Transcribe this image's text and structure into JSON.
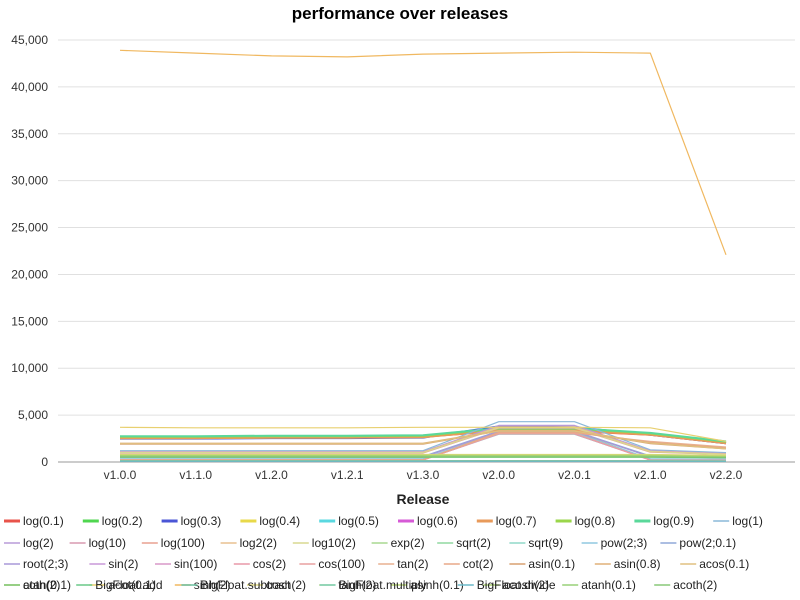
{
  "chart_data": {
    "type": "line",
    "title": "performance over releases",
    "xlabel": "Release",
    "ylabel": "",
    "categories": [
      "v1.0.0",
      "v1.1.0",
      "v1.2.0",
      "v1.2.1",
      "v1.3.0",
      "v2.0.0",
      "v2.0.1",
      "v2.1.0",
      "v2.2.0"
    ],
    "ylim": [
      0,
      45000
    ],
    "yticks": [
      0,
      5000,
      10000,
      15000,
      20000,
      25000,
      30000,
      35000,
      40000,
      45000
    ],
    "ytick_labels": [
      "0",
      "5,000",
      "10,000",
      "15,000",
      "20,000",
      "25,000",
      "30,000",
      "35,000",
      "40,000",
      "45,000"
    ],
    "grid": true,
    "legend_position": "bottom",
    "series": [
      {
        "name": "log(0.1)",
        "color": "#e8534a",
        "values": [
          2600,
          2600,
          2650,
          2650,
          2700,
          3300,
          3300,
          2900,
          2000
        ]
      },
      {
        "name": "log(0.2)",
        "color": "#4fd64f",
        "values": [
          2700,
          2700,
          2750,
          2750,
          2800,
          3600,
          3600,
          3000,
          2100
        ]
      },
      {
        "name": "log(0.3)",
        "color": "#4a55d6",
        "values": [
          2500,
          2500,
          2550,
          2550,
          2600,
          3800,
          3700,
          2900,
          2000
        ]
      },
      {
        "name": "log(0.4)",
        "color": "#e8d94a",
        "values": [
          2550,
          2550,
          2600,
          2600,
          2650,
          3400,
          3400,
          2950,
          2050
        ]
      },
      {
        "name": "log(0.5)",
        "color": "#5ad8e0",
        "values": [
          2650,
          2650,
          2700,
          2700,
          2750,
          3500,
          3500,
          3000,
          2100
        ]
      },
      {
        "name": "log(0.6)",
        "color": "#d65ad6",
        "values": [
          2600,
          2600,
          2650,
          2650,
          2700,
          3450,
          3450,
          2950,
          2050
        ]
      },
      {
        "name": "log(0.7)",
        "color": "#e89a5a",
        "values": [
          2550,
          2550,
          2600,
          2600,
          2650,
          3350,
          3350,
          2900,
          2000
        ]
      },
      {
        "name": "log(0.8)",
        "color": "#9ad64a",
        "values": [
          2700,
          2700,
          2750,
          2750,
          2800,
          3550,
          3550,
          3050,
          2150
        ]
      },
      {
        "name": "log(0.9)",
        "color": "#5ad89a",
        "values": [
          2750,
          2750,
          2800,
          2800,
          2850,
          3600,
          3600,
          3100,
          2200
        ]
      },
      {
        "name": "log(1)",
        "color": "#8ab8d8",
        "values": [
          1200,
          1200,
          1200,
          1200,
          1200,
          4300,
          4300,
          1300,
          1000
        ]
      },
      {
        "name": "log(2)",
        "color": "#b89ad8",
        "values": [
          1100,
          1100,
          1100,
          1100,
          1100,
          3900,
          3900,
          1200,
          900
        ]
      },
      {
        "name": "log(10)",
        "color": "#d89ab0",
        "values": [
          1000,
          1000,
          1000,
          1000,
          1000,
          3700,
          3700,
          1100,
          850
        ]
      },
      {
        "name": "log(100)",
        "color": "#e8a090",
        "values": [
          950,
          950,
          950,
          950,
          950,
          3600,
          3600,
          1050,
          800
        ]
      },
      {
        "name": "log2(2)",
        "color": "#e8c090",
        "values": [
          1050,
          1050,
          1050,
          1050,
          1050,
          3750,
          3750,
          1150,
          850
        ]
      },
      {
        "name": "log10(2)",
        "color": "#d8d890",
        "values": [
          1000,
          1000,
          1000,
          1000,
          1000,
          3650,
          3650,
          1100,
          800
        ]
      },
      {
        "name": "exp(2)",
        "color": "#a8d890",
        "values": [
          300,
          300,
          300,
          300,
          300,
          3200,
          3200,
          300,
          250
        ]
      },
      {
        "name": "sqrt(2)",
        "color": "#90d8a0",
        "values": [
          250,
          250,
          250,
          250,
          250,
          3000,
          3000,
          250,
          200
        ]
      },
      {
        "name": "sqrt(9)",
        "color": "#90d8c8",
        "values": [
          240,
          240,
          240,
          240,
          240,
          2950,
          2950,
          240,
          200
        ]
      },
      {
        "name": "pow(2;3)",
        "color": "#90c8e0",
        "values": [
          350,
          350,
          350,
          350,
          350,
          3100,
          3100,
          350,
          300
        ]
      },
      {
        "name": "pow(2;0.1)",
        "color": "#90a8d8",
        "values": [
          600,
          600,
          600,
          600,
          600,
          3300,
          3300,
          650,
          500
        ]
      },
      {
        "name": "root(2;3)",
        "color": "#a898d8",
        "values": [
          500,
          500,
          500,
          500,
          500,
          3250,
          3250,
          550,
          450
        ]
      },
      {
        "name": "sin(2)",
        "color": "#c898d8",
        "values": [
          200,
          200,
          200,
          200,
          200,
          3000,
          3000,
          200,
          180
        ]
      },
      {
        "name": "sin(100)",
        "color": "#d898c8",
        "values": [
          210,
          210,
          210,
          210,
          210,
          3050,
          3050,
          210,
          190
        ]
      },
      {
        "name": "cos(2)",
        "color": "#e898a8",
        "values": [
          200,
          200,
          200,
          200,
          200,
          3000,
          3000,
          200,
          180
        ]
      },
      {
        "name": "cos(100)",
        "color": "#e8a0a0",
        "values": [
          210,
          210,
          210,
          210,
          210,
          3050,
          3050,
          210,
          190
        ]
      },
      {
        "name": "tan(2)",
        "color": "#e8b090",
        "values": [
          220,
          220,
          220,
          220,
          220,
          3100,
          3100,
          2200,
          1600
        ]
      },
      {
        "name": "cot(2)",
        "color": "#e8a888",
        "values": [
          230,
          230,
          230,
          230,
          230,
          3150,
          3150,
          2100,
          1500
        ]
      },
      {
        "name": "asin(0.1)",
        "color": "#d8a070",
        "values": [
          1900,
          1900,
          1900,
          1900,
          1900,
          3300,
          3300,
          1950,
          1400
        ]
      },
      {
        "name": "asin(0.8)",
        "color": "#e0b078",
        "values": [
          2000,
          2000,
          2000,
          2000,
          2000,
          3350,
          3350,
          2050,
          1450
        ]
      },
      {
        "name": "acos(0.1)",
        "color": "#e0c080",
        "values": [
          1950,
          1950,
          1950,
          1950,
          1950,
          3300,
          3300,
          2000,
          1400
        ]
      },
      {
        "name": "atan(0.1)",
        "color": "#e8c888",
        "values": [
          150,
          150,
          150,
          150,
          150,
          150,
          150,
          150,
          130
        ]
      },
      {
        "name": "acot(0.1)",
        "color": "#e8d070",
        "values": [
          3700,
          3650,
          3650,
          3650,
          3700,
          3700,
          3700,
          3650,
          2200
        ]
      },
      {
        "name": "sinh(2)",
        "color": "#f0b860",
        "values": [
          43900,
          43600,
          43300,
          43200,
          43500,
          43600,
          43700,
          43600,
          22100
        ]
      },
      {
        "name": "cosh(2)",
        "color": "#e0d880",
        "values": [
          800,
          800,
          800,
          800,
          800,
          800,
          800,
          800,
          700
        ]
      },
      {
        "name": "tanh(2)",
        "color": "#d0d870",
        "values": [
          750,
          750,
          750,
          750,
          750,
          750,
          750,
          750,
          650
        ]
      },
      {
        "name": "asinh(0.1)",
        "color": "#b8d870",
        "values": [
          700,
          700,
          700,
          700,
          700,
          700,
          700,
          700,
          600
        ]
      },
      {
        "name": "acosh(2)",
        "color": "#a8d070",
        "values": [
          650,
          650,
          650,
          650,
          650,
          650,
          650,
          650,
          550
        ]
      },
      {
        "name": "atanh(0.1)",
        "color": "#98d078",
        "values": [
          600,
          600,
          600,
          600,
          600,
          600,
          600,
          600,
          520
        ]
      },
      {
        "name": "acoth(2)",
        "color": "#88c878",
        "values": [
          550,
          550,
          550,
          550,
          550,
          550,
          550,
          550,
          480
        ]
      },
      {
        "name": "coth(2)",
        "color": "#78c870",
        "values": [
          500,
          500,
          500,
          500,
          500,
          500,
          500,
          500,
          450
        ]
      },
      {
        "name": "BigFloat.add",
        "color": "#6ac888",
        "values": [
          120,
          120,
          120,
          120,
          120,
          120,
          120,
          120,
          110
        ]
      },
      {
        "name": "BigFloat.subtract",
        "color": "#6ac0a0",
        "values": [
          110,
          110,
          110,
          110,
          110,
          110,
          110,
          110,
          100
        ]
      },
      {
        "name": "BigFloat.multiply",
        "color": "#7ad0b8",
        "values": [
          100,
          100,
          100,
          100,
          100,
          100,
          100,
          100,
          90
        ]
      },
      {
        "name": "BigFloat.divide",
        "color": "#6ab8c8",
        "values": [
          90,
          90,
          90,
          90,
          90,
          90,
          90,
          90,
          80
        ]
      }
    ]
  }
}
